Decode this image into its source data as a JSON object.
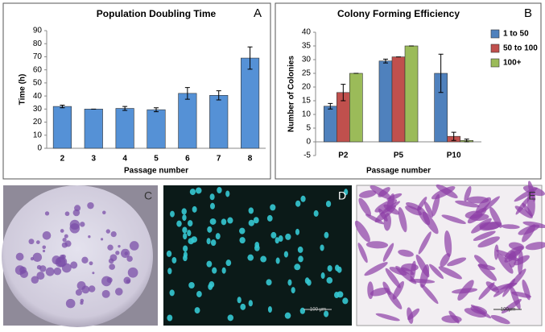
{
  "chart_data": [
    {
      "type": "bar",
      "title": "Population Doubling Time",
      "panel_label": "A",
      "x_label": "Passage number",
      "y_label": "Time (h)",
      "categories": [
        "2",
        "3",
        "4",
        "5",
        "6",
        "7",
        "8"
      ],
      "series": [
        {
          "name": "Population Doubling Time",
          "color": "#5591d6",
          "values": [
            32,
            30,
            30.5,
            29.5,
            42,
            40.5,
            69
          ],
          "errors": [
            1,
            0,
            1.5,
            1.5,
            4.5,
            3.5,
            8.5
          ]
        }
      ],
      "ylim": [
        0,
        90
      ],
      "yticks": [
        0,
        10,
        20,
        30,
        40,
        50,
        60,
        70,
        80,
        90
      ],
      "grid": false,
      "legend": "none"
    },
    {
      "type": "bar",
      "title": "Colony Forming Efficiency",
      "panel_label": "B",
      "x_label": "Passage number",
      "y_label": "Number of Colonies",
      "categories": [
        "P2",
        "P5",
        "P10"
      ],
      "series": [
        {
          "name": "1 to 50",
          "color": "#4f81bd",
          "values": [
            13,
            29.5,
            25
          ],
          "errors": [
            1,
            0.7,
            7
          ]
        },
        {
          "name": "50 to 100",
          "color": "#c0504d",
          "values": [
            18,
            31,
            2
          ],
          "errors": [
            3,
            0,
            1.5
          ]
        },
        {
          "name": "100+",
          "color": "#9bbb59",
          "values": [
            25,
            35,
            0.5
          ],
          "errors": [
            0,
            0,
            0.5
          ]
        }
      ],
      "ylim": [
        -5,
        40
      ],
      "yticks": [
        -5,
        0,
        5,
        10,
        15,
        20,
        25,
        30,
        35,
        40
      ],
      "grid": false,
      "legend": "top-right"
    }
  ],
  "images": [
    {
      "label": "C"
    },
    {
      "label": "D",
      "scale_bar": "100 µm"
    },
    {
      "label": "E",
      "scale_bar": "100µm"
    }
  ]
}
